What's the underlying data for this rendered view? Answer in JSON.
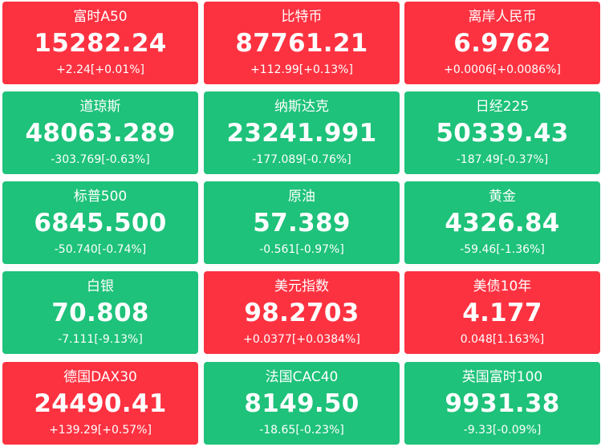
{
  "colors": {
    "up": "#fd3241",
    "down": "#1ec27a",
    "text": "#ffffff"
  },
  "tiles": [
    {
      "name": "富时A50",
      "price": "15282.24",
      "change": "+2.24[+0.01%]",
      "trend": "up"
    },
    {
      "name": "比特币",
      "price": "87761.21",
      "change": "+112.99[+0.13%]",
      "trend": "up"
    },
    {
      "name": "离岸人民币",
      "price": "6.9762",
      "change": "+0.0006[+0.0086%]",
      "trend": "up"
    },
    {
      "name": "道琼斯",
      "price": "48063.289",
      "change": "-303.769[-0.63%]",
      "trend": "down"
    },
    {
      "name": "纳斯达克",
      "price": "23241.991",
      "change": "-177.089[-0.76%]",
      "trend": "down"
    },
    {
      "name": "日经225",
      "price": "50339.43",
      "change": "-187.49[-0.37%]",
      "trend": "down"
    },
    {
      "name": "标普500",
      "price": "6845.500",
      "change": "-50.740[-0.74%]",
      "trend": "down"
    },
    {
      "name": "原油",
      "price": "57.389",
      "change": "-0.561[-0.97%]",
      "trend": "down"
    },
    {
      "name": "黄金",
      "price": "4326.84",
      "change": "-59.46[-1.36%]",
      "trend": "down"
    },
    {
      "name": "白银",
      "price": "70.808",
      "change": "-7.111[-9.13%]",
      "trend": "down"
    },
    {
      "name": "美元指数",
      "price": "98.2703",
      "change": "+0.0377[+0.0384%]",
      "trend": "up"
    },
    {
      "name": "美债10年",
      "price": "4.177",
      "change": "0.048[1.163%]",
      "trend": "up"
    },
    {
      "name": "德国DAX30",
      "price": "24490.41",
      "change": "+139.29[+0.57%]",
      "trend": "up"
    },
    {
      "name": "法国CAC40",
      "price": "8149.50",
      "change": "-18.65[-0.23%]",
      "trend": "down"
    },
    {
      "name": "英国富时100",
      "price": "9931.38",
      "change": "-9.33[-0.09%]",
      "trend": "down"
    }
  ]
}
